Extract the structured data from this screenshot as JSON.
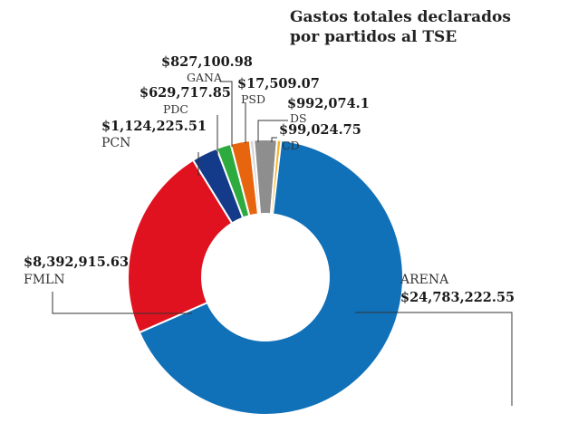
{
  "chart_data": {
    "type": "pie",
    "variant": "donut",
    "title": [
      "Gastos totales declarados",
      "por partidos al TSE"
    ],
    "series": [
      {
        "name": "ARENA",
        "label": "$24,783,222.55",
        "value": 24783222.55,
        "color": "#1070b8"
      },
      {
        "name": "FMLN",
        "label": "$8,392,915.63",
        "value": 8392915.63,
        "color": "#e0121f"
      },
      {
        "name": "PCN",
        "label": "$1,124,225.51",
        "value": 1124225.51,
        "color": "#143a8a"
      },
      {
        "name": "PDC",
        "label": "$629,717.85",
        "value": 629717.85,
        "color": "#2eab3e"
      },
      {
        "name": "GANA",
        "label": "$827,100.98",
        "value": 827100.98,
        "color": "#e8650f"
      },
      {
        "name": "PSD",
        "label": "$17,509.07",
        "value": 17509.07,
        "color": "#d4d4d4"
      },
      {
        "name": "DS",
        "label": "$992,074.1",
        "value": 992074.1,
        "color": "#8e8e8e"
      },
      {
        "name": "CD",
        "label": "$99,024.75",
        "value": 99024.75,
        "color": "#f6b126"
      }
    ],
    "legend": "none"
  }
}
